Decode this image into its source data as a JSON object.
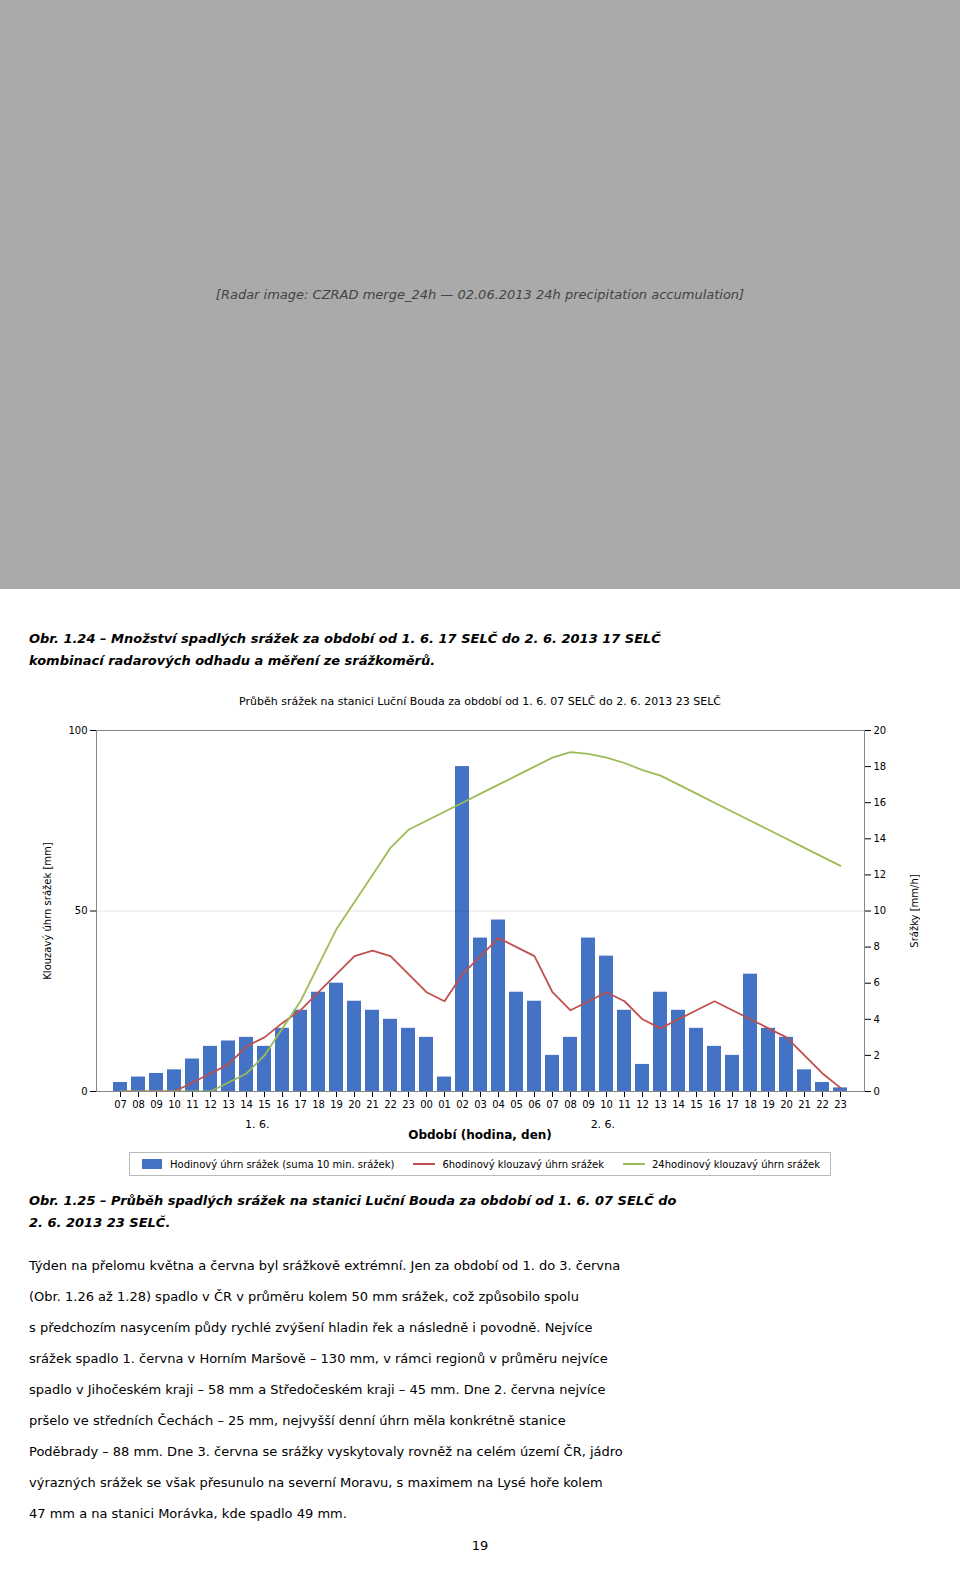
{
  "chart_data": {
    "type": "bar",
    "title": "Průběh srážek na stanici Luční Bouda za období od 1. 6. 07 SELČ do 2. 6. 2013 23 SELČ",
    "xlabel": "Období (hodina, den)",
    "ylabel": "Klouzavý úhrn srážek [mm]",
    "y2label": "Srážky [mm/h]",
    "categories": [
      "07",
      "08",
      "09",
      "10",
      "11",
      "12",
      "13",
      "14",
      "15",
      "16",
      "17",
      "18",
      "19",
      "20",
      "21",
      "22",
      "23",
      "00",
      "01",
      "02",
      "03",
      "04",
      "05",
      "06",
      "07",
      "08",
      "09",
      "10",
      "11",
      "12",
      "13",
      "14",
      "15",
      "16",
      "17",
      "18",
      "19",
      "20",
      "21",
      "22",
      "23"
    ],
    "annotations": [
      "1. 6.",
      "2. 6."
    ],
    "ylim": [
      0,
      100
    ],
    "yticks": [
      0,
      50,
      100
    ],
    "y2lim": [
      0,
      20
    ],
    "y2ticks": [
      0,
      2,
      4,
      6,
      8,
      10,
      12,
      14,
      16,
      18,
      20
    ],
    "grid": true,
    "series": [
      {
        "name": "Hodinový úhrn srážek (suma 10 min. srážek)",
        "type": "bar",
        "axis": "y2",
        "color": "#4472C4",
        "values": [
          0.5,
          0.8,
          1.0,
          1.2,
          1.8,
          2.5,
          2.8,
          3.0,
          2.5,
          3.5,
          4.5,
          5.5,
          6.0,
          5.0,
          4.5,
          4.0,
          3.5,
          3.0,
          0.8,
          18.0,
          8.5,
          9.5,
          5.5,
          5.0,
          2.0,
          3.0,
          8.5,
          7.5,
          4.5,
          1.5,
          5.5,
          4.5,
          3.5,
          2.5,
          2.0,
          6.5,
          3.5,
          3.0,
          1.2,
          0.5,
          0.2
        ]
      },
      {
        "name": "6hodinový klouzavý úhrn srážek",
        "type": "line",
        "axis": "y",
        "color": "#C0504D",
        "values": [
          0,
          0,
          0,
          0,
          2.5,
          5,
          7.5,
          12.5,
          15,
          19,
          22.5,
          27.5,
          32.5,
          37.5,
          39,
          37.5,
          32.5,
          27.5,
          25,
          32.5,
          37.5,
          42.5,
          40,
          37.5,
          27.5,
          22.5,
          25,
          27.5,
          25,
          20,
          17.5,
          20,
          22.5,
          25,
          22.5,
          20,
          17.5,
          15,
          10,
          5,
          1
        ]
      },
      {
        "name": "24hodinový klouzavý úhrn srážek",
        "type": "line",
        "axis": "y",
        "color": "#9BBB59",
        "values": [
          0,
          0,
          0,
          0,
          0,
          0,
          2.5,
          5,
          10,
          17.5,
          25,
          35,
          45,
          52.5,
          60,
          67.5,
          72.5,
          75,
          77.5,
          80,
          82.5,
          85,
          87.5,
          90,
          92.5,
          94,
          93.5,
          92.5,
          91,
          89,
          87.5,
          85,
          82.5,
          80,
          77.5,
          75,
          72.5,
          70,
          67.5,
          65,
          62.5
        ]
      }
    ]
  },
  "page": {
    "image_text": "[Radar image: CZRAD merge_24h — 02.06.2013 24h precipitation accumulation]",
    "image_color": "#AAAAAA",
    "caption_top": [
      "Obr. 1.24 – Množství spadlých srážek za období od 1. 6. 17 SELČ do 2. 6. 2013 17 SELČ",
      "kombinací radarových odhadu a měření ze srážkoměrů."
    ],
    "caption_chart": [
      "Obr. 1.25 – Průběh spadlých srážek na stanici Luční Bouda za období od 1. 6. 07 SELČ do",
      "2. 6. 2013 23 SELČ."
    ],
    "body": [
      "Týden na přelomu května a června byl srážkově extrémní. Jen za období od 1. do 3. června",
      "(Obr. 1.26 až 1.28) spadlo v ČR v průměru kolem 50 mm srážek, což způsobilo spolu",
      "s předchozím nasycením půdy rychlé zvýšení hladin řek a následně i povodně. Nejvíce",
      "srážek spadlo 1. června v Horním Maršově – 130 mm, v rámci regionů v průměru nejvíce",
      "spadlo v Jihočeském kraji – 58 mm a Středočeském kraji – 45 mm. Dne 2. června nejvíce",
      "pršelo ve středních Čechách – 25 mm, nejvyšší denní úhrn měla konkrétně stanice",
      "Poděbrady – 88 mm. Dne 3. června se srážky vyskytovaly rovněž na celém území ČR, jádro",
      "výrazných srážek se však přesunulo na severní Moravu, s maximem na Lysé hoře kolem",
      "47 mm a na stanici Morávka, kde spadlo 49 mm."
    ],
    "page_number": "19"
  }
}
